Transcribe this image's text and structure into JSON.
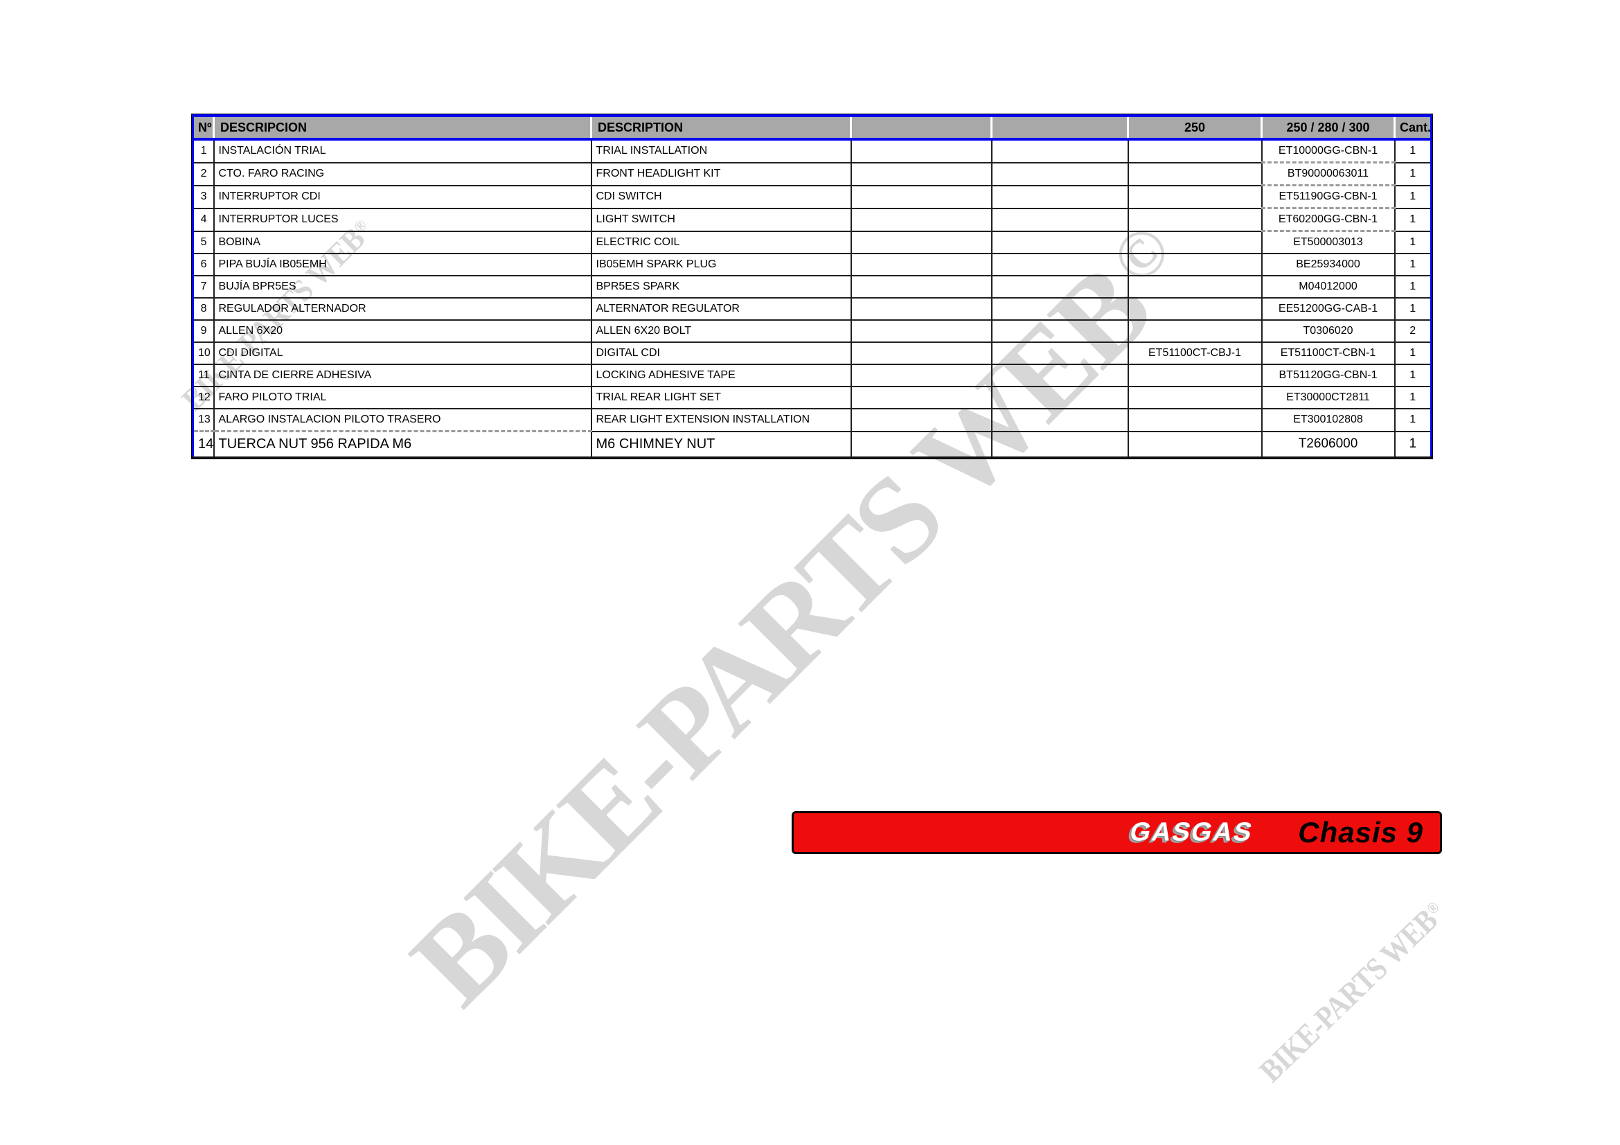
{
  "table": {
    "columns": [
      "Nº",
      "DESCRIPCION",
      "DESCRIPTION",
      "",
      "",
      "250",
      "250 / 280 / 300",
      "Cant."
    ],
    "rows": [
      {
        "num": "1",
        "descripcion": "INSTALACIÓN TRIAL",
        "description": "TRIAL INSTALLATION",
        "c250": "",
        "ref": "ET10000GG-CBN-1",
        "cant": "1"
      },
      {
        "num": "2",
        "descripcion": "CTO. FARO RACING",
        "description": "FRONT HEADLIGHT KIT",
        "c250": "",
        "ref": "BT90000063011",
        "cant": "1"
      },
      {
        "num": "3",
        "descripcion": "INTERRUPTOR CDI",
        "description": "CDI SWITCH",
        "c250": "",
        "ref": "ET51190GG-CBN-1",
        "cant": "1"
      },
      {
        "num": "4",
        "descripcion": "INTERRUPTOR LUCES",
        "description": "LIGHT SWITCH",
        "c250": "",
        "ref": "ET60200GG-CBN-1",
        "cant": "1"
      },
      {
        "num": "5",
        "descripcion": "BOBINA",
        "description": "ELECTRIC COIL",
        "c250": "",
        "ref": "ET500003013",
        "cant": "1"
      },
      {
        "num": "6",
        "descripcion": "PIPA BUJÍA IB05EMH",
        "description": "IB05EMH SPARK PLUG",
        "c250": "",
        "ref": "BE25934000",
        "cant": "1"
      },
      {
        "num": "7",
        "descripcion": "BUJÍA BPR5ES",
        "description": "BPR5ES SPARK",
        "c250": "",
        "ref": "M04012000",
        "cant": "1"
      },
      {
        "num": "8",
        "descripcion": "REGULADOR ALTERNADOR",
        "description": "ALTERNATOR REGULATOR",
        "c250": "",
        "ref": "EE51200GG-CAB-1",
        "cant": "1"
      },
      {
        "num": "9",
        "descripcion": "ALLEN 6X20",
        "description": " ALLEN 6X20 BOLT",
        "c250": "",
        "ref": "T0306020",
        "cant": "2"
      },
      {
        "num": "10",
        "descripcion": "CDI DIGITAL",
        "description": "DIGITAL CDI",
        "c250": "ET51100CT-CBJ-1",
        "ref": "ET51100CT-CBN-1",
        "cant": "1"
      },
      {
        "num": "11",
        "descripcion": "CINTA DE CIERRE ADHESIVA",
        "description": "LOCKING ADHESIVE TAPE",
        "c250": "",
        "ref": "BT51120GG-CBN-1",
        "cant": "1"
      },
      {
        "num": "12",
        "descripcion": "FARO PILOTO TRIAL",
        "description": "TRIAL REAR LIGHT SET",
        "c250": "",
        "ref": "ET30000CT2811",
        "cant": "1"
      },
      {
        "num": "13",
        "descripcion": "ALARGO INSTALACION PILOTO TRASERO",
        "description": "REAR LIGHT EXTENSION INSTALLATION",
        "c250": "",
        "ref": "ET300102808",
        "cant": "1"
      },
      {
        "num": "14",
        "descripcion": "TUERCA NUT 956 RAPIDA M6",
        "description": "M6 CHIMNEY NUT",
        "c250": "",
        "ref": "T2606000",
        "cant": "1"
      }
    ]
  },
  "banner": {
    "brand": "GASGAS",
    "title": "Chasis 9"
  },
  "watermarks": {
    "large": {
      "text": "BIKE-PARTS WEB",
      "symbol": "©"
    },
    "top_left": {
      "text": "BIKE-PARTS WEB",
      "symbol": "®"
    },
    "bottom_right": {
      "text": "BIKE-PARTS WEB",
      "symbol": "®"
    }
  },
  "colors": {
    "banner_red": "#ee0d0d",
    "header_gray": "#a8a8a8",
    "table_border_blue": "#0404ee",
    "watermark_gray": "#d7d7d7"
  }
}
